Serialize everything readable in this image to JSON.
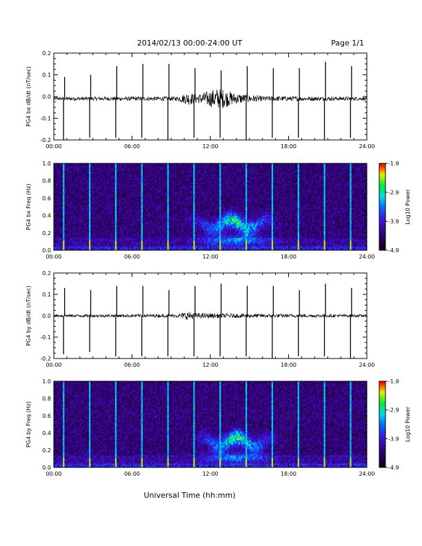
{
  "header": {
    "title": "2014/02/13  00:00-24:00 UT",
    "page": "Page 1/1"
  },
  "footer": {
    "xlabel": "Universal Time (hh:mm)"
  },
  "chart_data": [
    {
      "type": "line",
      "name": "bx-waveform",
      "ylabel": "PG4 bx dB/dt (nT/sec)",
      "xlim": [
        0,
        24
      ],
      "ylim": [
        -0.2,
        0.2
      ],
      "xticks": [
        "00:00",
        "06:00",
        "12:00",
        "18:00",
        "24:00"
      ],
      "yticks": [
        "-0.2",
        "-0.1",
        "0.0",
        "0.1",
        "0.2"
      ],
      "baseline": -0.01,
      "calibration_pulses": [
        {
          "t": 0.75,
          "up": 0.09,
          "down": -0.2
        },
        {
          "t": 2.75,
          "up": 0.1,
          "down": -0.19
        },
        {
          "t": 4.75,
          "up": 0.14,
          "down": -0.19
        },
        {
          "t": 6.75,
          "up": 0.15,
          "down": -0.19
        },
        {
          "t": 8.75,
          "up": 0.15,
          "down": -0.2
        },
        {
          "t": 10.75,
          "up": 0.13,
          "down": -0.19
        },
        {
          "t": 12.75,
          "up": 0.12,
          "down": -0.19
        },
        {
          "t": 14.75,
          "up": 0.14,
          "down": -0.2
        },
        {
          "t": 16.75,
          "up": 0.13,
          "down": -0.19
        },
        {
          "t": 18.75,
          "up": 0.13,
          "down": -0.19
        },
        {
          "t": 20.75,
          "up": 0.16,
          "down": -0.2
        },
        {
          "t": 22.75,
          "up": 0.14,
          "down": -0.19
        }
      ],
      "noise_envelope": [
        {
          "t": 0,
          "amp": 0.008
        },
        {
          "t": 9.5,
          "amp": 0.01
        },
        {
          "t": 10.3,
          "amp": 0.03
        },
        {
          "t": 11.0,
          "amp": 0.02
        },
        {
          "t": 12.6,
          "amp": 0.05
        },
        {
          "t": 14.0,
          "amp": 0.025
        },
        {
          "t": 16.0,
          "amp": 0.012
        },
        {
          "t": 24,
          "amp": 0.008
        }
      ]
    },
    {
      "type": "heatmap",
      "name": "bx-spectrogram",
      "ylabel": "PG4 bx Freq (Hz)",
      "xlim": [
        0,
        24
      ],
      "ylim": [
        0,
        1.0
      ],
      "xticks": [
        "00:00",
        "06:00",
        "12:00",
        "18:00",
        "24:00"
      ],
      "yticks": [
        "0.0",
        "0.2",
        "0.4",
        "0.6",
        "0.8",
        "1.0"
      ],
      "colorbar": {
        "label": "Log10 Power",
        "ticks": [
          "-1.9",
          "-2.9",
          "-3.9",
          "-4.9"
        ],
        "range": [
          -4.9,
          -1.9
        ]
      },
      "pulse_times": [
        0.75,
        2.75,
        4.75,
        6.75,
        8.75,
        10.75,
        12.75,
        14.75,
        16.75,
        18.75,
        20.75,
        22.75
      ],
      "pc1_band": {
        "t_start": 10.0,
        "t_peak": 14.0,
        "t_end": 17.5,
        "f_low": 0.2,
        "f_high": 0.5,
        "peak_power": -2.9
      }
    },
    {
      "type": "line",
      "name": "by-waveform",
      "ylabel": "PG4 by dB/dt (nT/sec)",
      "xlim": [
        0,
        24
      ],
      "ylim": [
        -0.2,
        0.2
      ],
      "xticks": [
        "00:00",
        "06:00",
        "12:00",
        "18:00",
        "24:00"
      ],
      "yticks": [
        "-0.2",
        "-0.1",
        "0.0",
        "0.1",
        "0.2"
      ],
      "baseline": 0.0,
      "calibration_pulses": [
        {
          "t": 0.75,
          "up": 0.13,
          "down": -0.18
        },
        {
          "t": 2.75,
          "up": 0.12,
          "down": -0.17
        },
        {
          "t": 4.75,
          "up": 0.14,
          "down": -0.19
        },
        {
          "t": 6.75,
          "up": 0.14,
          "down": -0.19
        },
        {
          "t": 8.75,
          "up": 0.12,
          "down": -0.19
        },
        {
          "t": 10.75,
          "up": 0.14,
          "down": -0.19
        },
        {
          "t": 12.75,
          "up": 0.15,
          "down": -0.19
        },
        {
          "t": 14.75,
          "up": 0.14,
          "down": -0.19
        },
        {
          "t": 16.75,
          "up": 0.14,
          "down": -0.2
        },
        {
          "t": 18.75,
          "up": 0.12,
          "down": -0.19
        },
        {
          "t": 20.75,
          "up": 0.15,
          "down": -0.19
        },
        {
          "t": 22.75,
          "up": 0.13,
          "down": -0.2
        }
      ],
      "noise_envelope": [
        {
          "t": 0,
          "amp": 0.006
        },
        {
          "t": 9.5,
          "amp": 0.008
        },
        {
          "t": 10.3,
          "amp": 0.02
        },
        {
          "t": 11.0,
          "amp": 0.012
        },
        {
          "t": 13.0,
          "amp": 0.01
        },
        {
          "t": 24,
          "amp": 0.006
        }
      ]
    },
    {
      "type": "heatmap",
      "name": "by-spectrogram",
      "ylabel": "PG4 by Freq (Hz)",
      "xlim": [
        0,
        24
      ],
      "ylim": [
        0,
        1.0
      ],
      "xticks": [
        "00:00",
        "06:00",
        "12:00",
        "18:00",
        "24:00"
      ],
      "yticks": [
        "0.0",
        "0.2",
        "0.4",
        "0.6",
        "0.8",
        "1.0"
      ],
      "colorbar": {
        "label": "Log10 Power",
        "ticks": [
          "-1.9",
          "-2.9",
          "-3.9",
          "-4.9"
        ],
        "range": [
          -4.9,
          -1.9
        ]
      },
      "pulse_times": [
        0.75,
        2.75,
        4.75,
        6.75,
        8.75,
        10.75,
        12.75,
        14.75,
        16.75,
        18.75,
        20.75,
        22.75
      ],
      "pc1_band": {
        "t_start": 10.5,
        "t_peak": 14.0,
        "t_end": 17.5,
        "f_low": 0.2,
        "f_high": 0.5,
        "peak_power": -2.9
      }
    }
  ]
}
